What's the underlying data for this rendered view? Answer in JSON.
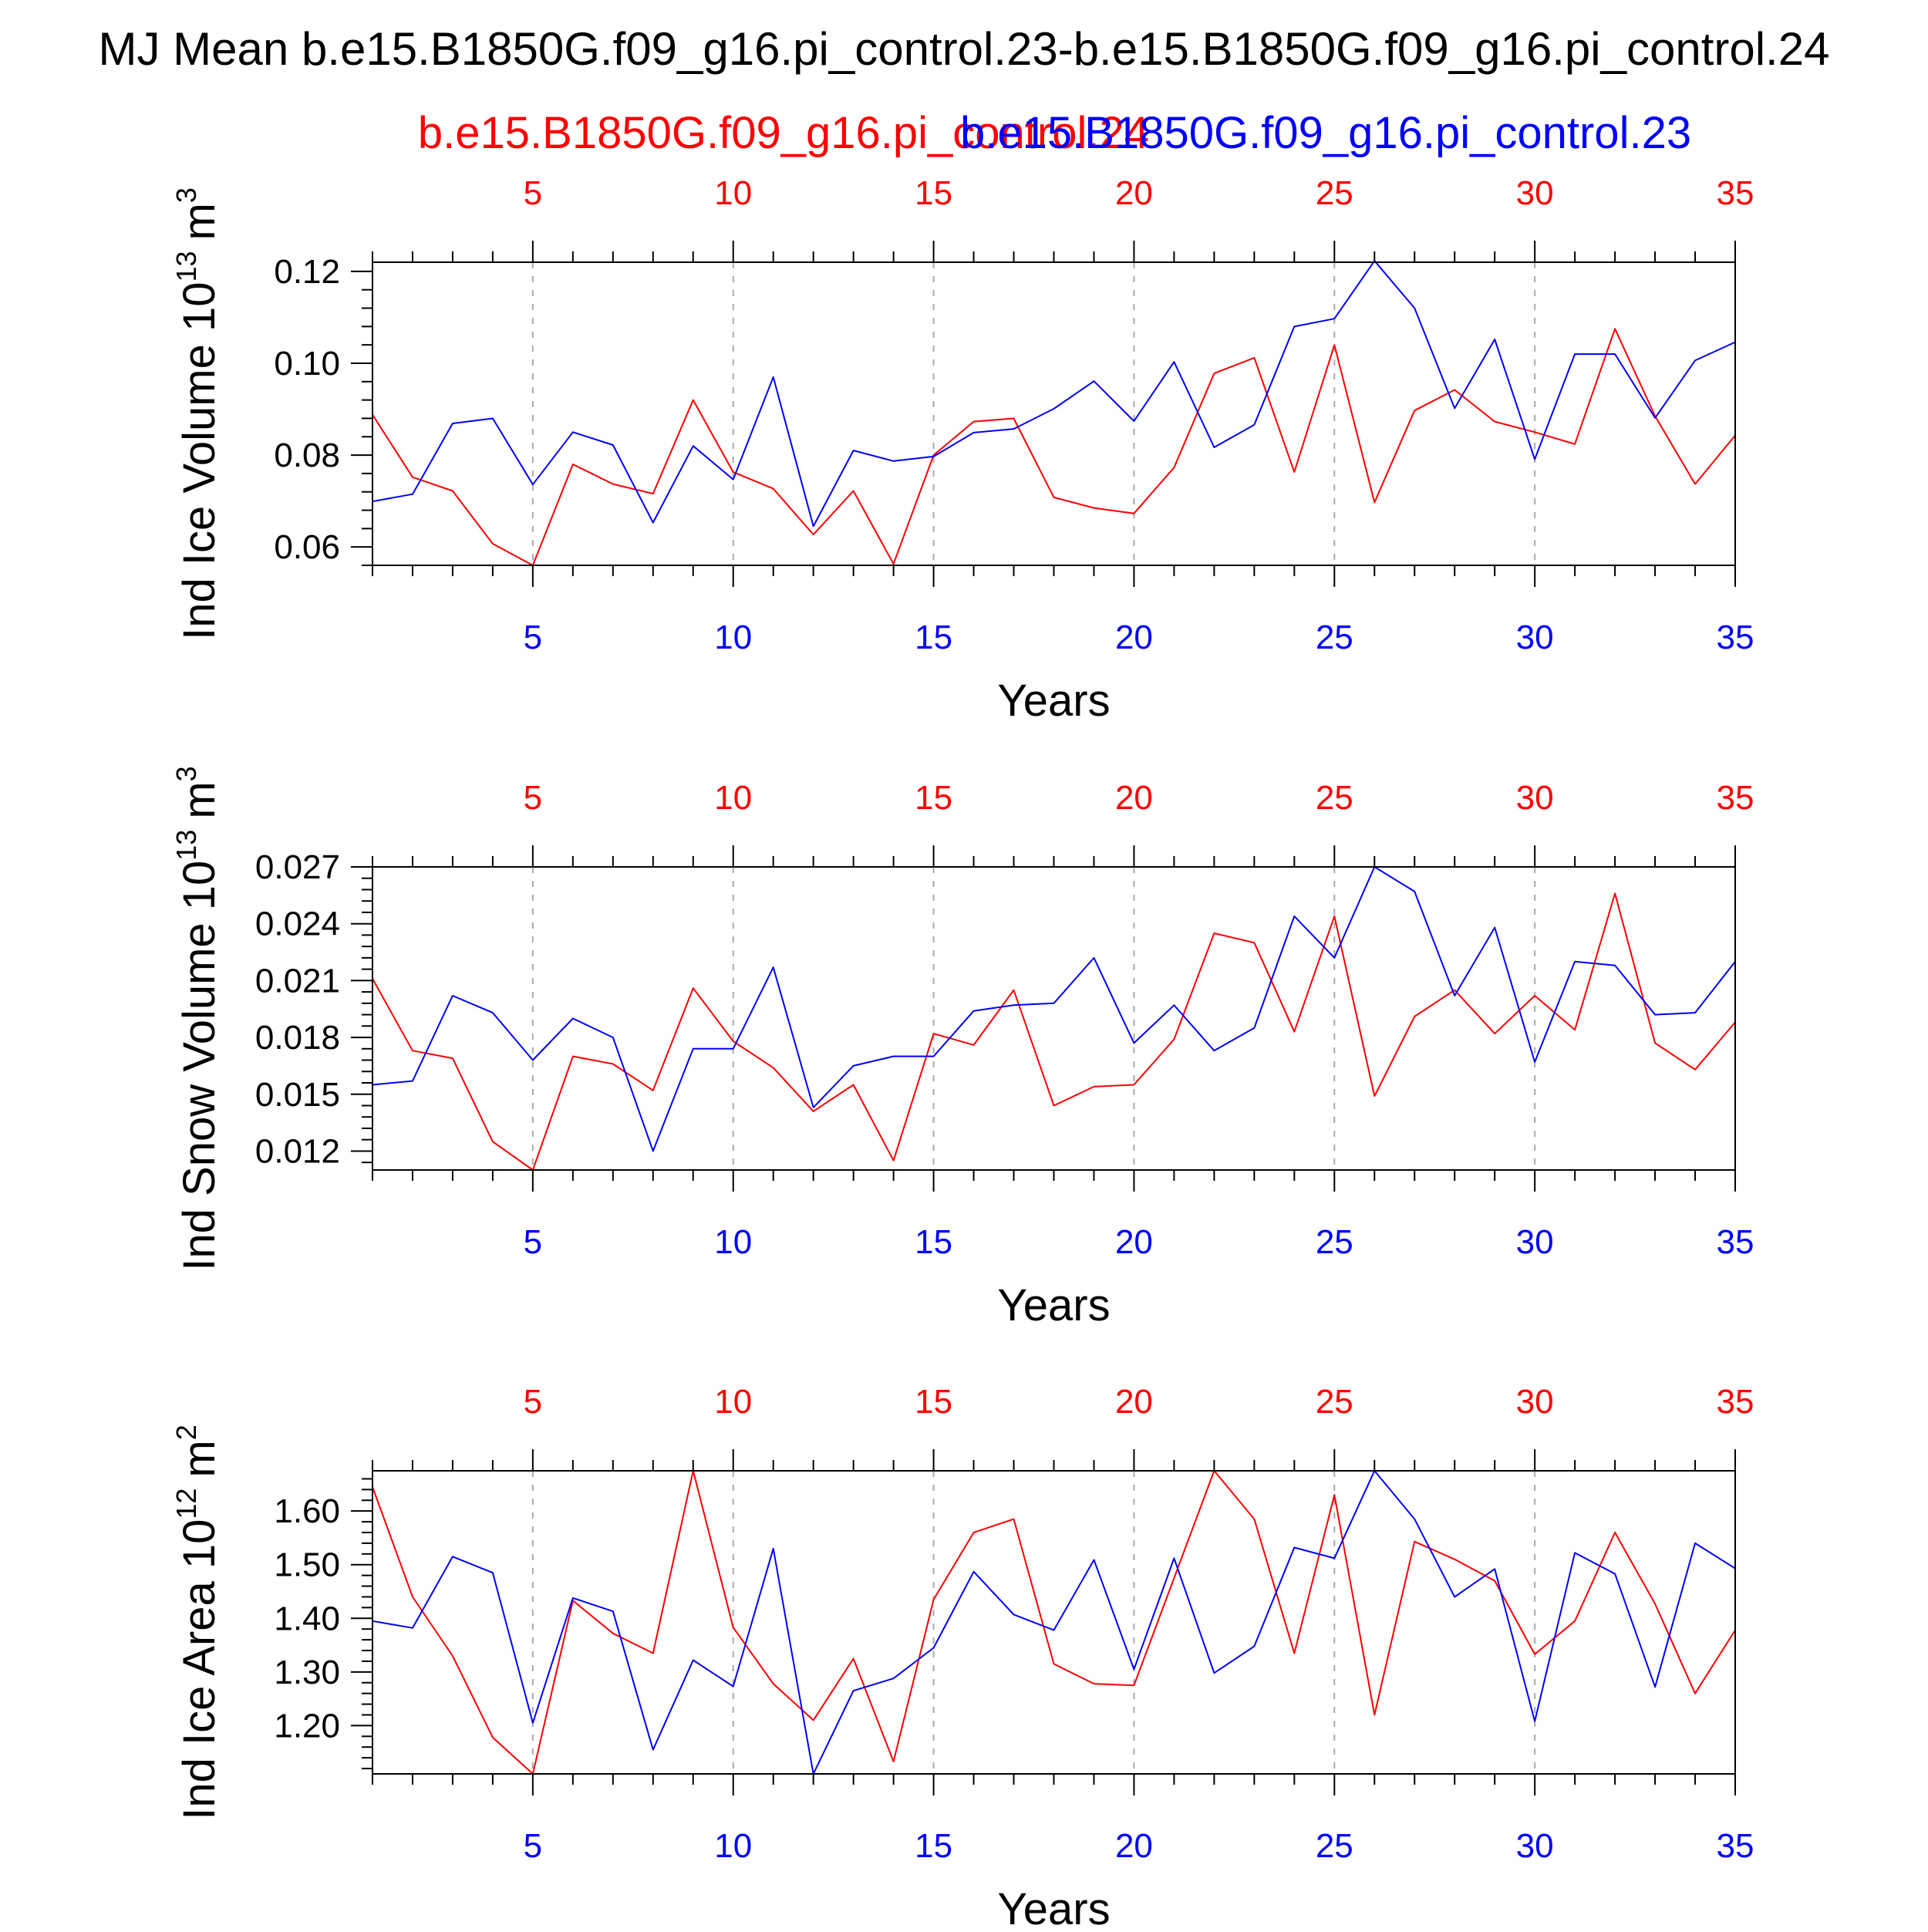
{
  "title": "MJ Mean b.e15.B1850G.f09_g16.pi_control.23-b.e15.B1850G.f09_g16.pi_control.24",
  "legend": {
    "red_case": "b.e15.B1850G.f09_g16.pi_control.24",
    "blue_case": "b.e15.B1850G.f09_g16.pi_control.23"
  },
  "colors": {
    "red": "#ff0000",
    "blue": "#0000ff",
    "axis": "#000000",
    "grid": "#aaaaaa"
  },
  "chart_data": [
    {
      "type": "line",
      "ylabel_main": "Ind Ice Volume 10",
      "ylabel_exp": "13",
      "ylabel_unit": "m",
      "ylabel_unit_exp": "3",
      "xlabel": "Years",
      "xlim": [
        1,
        35
      ],
      "ylim": [
        0.056,
        0.122
      ],
      "xticks": [
        5,
        10,
        15,
        20,
        25,
        30,
        35
      ],
      "xticklabels": [
        "5",
        "10",
        "15",
        "20",
        "25",
        "30",
        "35"
      ],
      "yticks": [
        0.06,
        0.08,
        0.1,
        0.12
      ],
      "yticklabels": [
        "0.06",
        "0.08",
        "0.10",
        "0.12"
      ],
      "x": [
        1,
        2,
        3,
        4,
        5,
        6,
        7,
        8,
        9,
        10,
        11,
        12,
        13,
        14,
        15,
        16,
        17,
        18,
        19,
        20,
        21,
        22,
        23,
        24,
        25,
        26,
        27,
        28,
        29,
        30,
        31,
        32,
        33,
        34,
        35
      ],
      "series": [
        {
          "name": "b.e15.B1850G.f09_g16.pi_control.24",
          "color": "red",
          "values": [
            0.0888,
            0.0752,
            0.0722,
            0.0607,
            0.056,
            0.078,
            0.0737,
            0.0716,
            0.092,
            0.0763,
            0.0727,
            0.0627,
            0.0722,
            0.0563,
            0.08,
            0.0873,
            0.088,
            0.0708,
            0.0685,
            0.0673,
            0.0773,
            0.0978,
            0.1012,
            0.0763,
            0.104,
            0.0697,
            0.0897,
            0.0942,
            0.0873,
            0.085,
            0.0824,
            0.1075,
            0.0885,
            0.0737,
            0.0843
          ]
        },
        {
          "name": "b.e15.B1850G.f09_g16.pi_control.23",
          "color": "blue",
          "values": [
            0.0699,
            0.0715,
            0.0869,
            0.088,
            0.0736,
            0.085,
            0.0822,
            0.0653,
            0.082,
            0.0747,
            0.097,
            0.0645,
            0.081,
            0.0787,
            0.0797,
            0.0849,
            0.0857,
            0.0901,
            0.0961,
            0.0874,
            0.1003,
            0.0817,
            0.0866,
            0.108,
            0.1097,
            0.1223,
            0.112,
            0.0902,
            0.1052,
            0.0791,
            0.102,
            0.102,
            0.0881,
            0.1006,
            0.1046
          ]
        }
      ]
    },
    {
      "type": "line",
      "ylabel_main": "Ind Snow Volume 10",
      "ylabel_exp": "13",
      "ylabel_unit": "m",
      "ylabel_unit_exp": "3",
      "xlabel": "Years",
      "xlim": [
        1,
        35
      ],
      "ylim": [
        0.011,
        0.027
      ],
      "xticks": [
        5,
        10,
        15,
        20,
        25,
        30,
        35
      ],
      "xticklabels": [
        "5",
        "10",
        "15",
        "20",
        "25",
        "30",
        "35"
      ],
      "yticks": [
        0.012,
        0.015,
        0.018,
        0.021,
        0.024,
        0.027
      ],
      "yticklabels": [
        "0.012",
        "0.015",
        "0.018",
        "0.021",
        "0.024",
        "0.027"
      ],
      "x": [
        1,
        2,
        3,
        4,
        5,
        6,
        7,
        8,
        9,
        10,
        11,
        12,
        13,
        14,
        15,
        16,
        17,
        18,
        19,
        20,
        21,
        22,
        23,
        24,
        25,
        26,
        27,
        28,
        29,
        30,
        31,
        32,
        33,
        34,
        35
      ],
      "series": [
        {
          "name": "b.e15.B1850G.f09_g16.pi_control.24",
          "color": "red",
          "values": [
            0.0211,
            0.0173,
            0.0169,
            0.0125,
            0.011,
            0.017,
            0.0166,
            0.0152,
            0.0206,
            0.0178,
            0.0164,
            0.0141,
            0.0155,
            0.0115,
            0.0182,
            0.0176,
            0.0205,
            0.0144,
            0.0154,
            0.0155,
            0.0179,
            0.0235,
            0.023,
            0.0183,
            0.0244,
            0.0149,
            0.0191,
            0.0205,
            0.0182,
            0.0202,
            0.0184,
            0.0256,
            0.0177,
            0.0163,
            0.0188
          ]
        },
        {
          "name": "b.e15.B1850G.f09_g16.pi_control.23",
          "color": "blue",
          "values": [
            0.0155,
            0.0157,
            0.0202,
            0.0193,
            0.0168,
            0.019,
            0.018,
            0.012,
            0.0174,
            0.0174,
            0.0217,
            0.0143,
            0.0165,
            0.017,
            0.017,
            0.0194,
            0.0197,
            0.0198,
            0.0222,
            0.0177,
            0.0197,
            0.0173,
            0.0185,
            0.0244,
            0.0222,
            0.027,
            0.0257,
            0.0202,
            0.0238,
            0.0167,
            0.022,
            0.0218,
            0.0192,
            0.0193,
            0.022
          ]
        }
      ]
    },
    {
      "type": "line",
      "ylabel_main": "Ind Ice Area 10",
      "ylabel_exp": "12",
      "ylabel_unit": "m",
      "ylabel_unit_exp": "2",
      "xlabel": "Years",
      "xlim": [
        1,
        35
      ],
      "ylim": [
        1.11,
        1.675
      ],
      "xticks": [
        5,
        10,
        15,
        20,
        25,
        30,
        35
      ],
      "xticklabels": [
        "5",
        "10",
        "15",
        "20",
        "25",
        "30",
        "35"
      ],
      "yticks": [
        1.2,
        1.3,
        1.4,
        1.5,
        1.6
      ],
      "yticklabels": [
        "1.20",
        "1.30",
        "1.40",
        "1.50",
        "1.60"
      ],
      "x": [
        1,
        2,
        3,
        4,
        5,
        6,
        7,
        8,
        9,
        10,
        11,
        12,
        13,
        14,
        15,
        16,
        17,
        18,
        19,
        20,
        21,
        22,
        23,
        24,
        25,
        26,
        27,
        28,
        29,
        30,
        31,
        32,
        33,
        34,
        35
      ],
      "series": [
        {
          "name": "b.e15.B1850G.f09_g16.pi_control.24",
          "color": "red",
          "values": [
            1.645,
            1.44,
            1.33,
            1.178,
            1.11,
            1.433,
            1.372,
            1.335,
            1.675,
            1.383,
            1.278,
            1.21,
            1.325,
            1.133,
            1.435,
            1.56,
            1.585,
            1.315,
            1.278,
            1.275,
            1.475,
            1.675,
            1.585,
            1.335,
            1.63,
            1.22,
            1.543,
            1.51,
            1.47,
            1.333,
            1.395,
            1.56,
            1.427,
            1.26,
            1.378
          ]
        },
        {
          "name": "b.e15.B1850G.f09_g16.pi_control.23",
          "color": "blue",
          "values": [
            1.395,
            1.382,
            1.515,
            1.485,
            1.205,
            1.438,
            1.413,
            1.155,
            1.322,
            1.273,
            1.53,
            1.11,
            1.265,
            1.288,
            1.345,
            1.487,
            1.407,
            1.378,
            1.509,
            1.305,
            1.512,
            1.298,
            1.348,
            1.532,
            1.512,
            1.675,
            1.585,
            1.44,
            1.492,
            1.208,
            1.522,
            1.483,
            1.272,
            1.54,
            1.493
          ]
        }
      ]
    }
  ]
}
